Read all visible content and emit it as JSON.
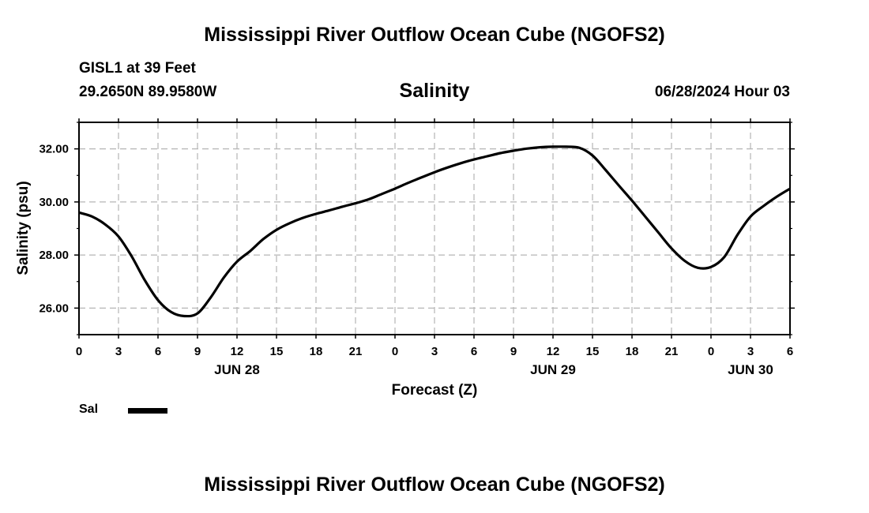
{
  "header": {
    "title": "Mississippi River Outflow Ocean Cube (NGOFS2)",
    "station": "GISL1 at 39 Feet",
    "coordinates": "29.2650N  89.9580W",
    "timestamp": "06/28/2024 Hour 03"
  },
  "footer": {
    "title": "Mississippi River Outflow Ocean Cube (NGOFS2)"
  },
  "legend": {
    "label": "Sal"
  },
  "chart_data": {
    "type": "line",
    "title": "Salinity",
    "xlabel": "Forecast (Z)",
    "ylabel": "Salinity (psu)",
    "x_unit": "hours from 06/28 00Z",
    "xlim": [
      0,
      54
    ],
    "ylim": [
      25,
      33
    ],
    "grid": true,
    "x_ticks": [
      0,
      3,
      6,
      9,
      12,
      15,
      18,
      21,
      24,
      27,
      30,
      33,
      36,
      39,
      42,
      45,
      48,
      51,
      54
    ],
    "x_tick_labels": [
      "0",
      "3",
      "6",
      "9",
      "12",
      "15",
      "18",
      "21",
      "0",
      "3",
      "6",
      "9",
      "12",
      "15",
      "18",
      "21",
      "0",
      "3",
      "6"
    ],
    "day_labels": [
      {
        "x": 12,
        "label": "JUN 28"
      },
      {
        "x": 36,
        "label": "JUN 29"
      },
      {
        "x": 51,
        "label": "JUN 30"
      }
    ],
    "y_ticks": [
      26,
      28,
      30,
      32
    ],
    "y_tick_labels": [
      "26.00",
      "28.00",
      "30.00",
      "32.00"
    ],
    "y_minor_ticks": [
      25,
      27,
      29,
      31,
      33
    ],
    "legend_position": "bottom-left",
    "series": [
      {
        "name": "Sal",
        "color": "#000000",
        "x": [
          0,
          1,
          2,
          3,
          4,
          5,
          6,
          7,
          8,
          9,
          10,
          11,
          12,
          13,
          14,
          15,
          16,
          17,
          18,
          19,
          20,
          21,
          22,
          23,
          24,
          25,
          26,
          27,
          28,
          29,
          30,
          31,
          32,
          33,
          34,
          35,
          36,
          37,
          38,
          39,
          40,
          41,
          42,
          43,
          44,
          45,
          46,
          47,
          48,
          49,
          50,
          51,
          52,
          53,
          54
        ],
        "y": [
          29.6,
          29.45,
          29.15,
          28.7,
          27.95,
          27.05,
          26.3,
          25.85,
          25.7,
          25.8,
          26.4,
          27.15,
          27.75,
          28.15,
          28.6,
          28.95,
          29.2,
          29.4,
          29.55,
          29.68,
          29.82,
          29.95,
          30.1,
          30.3,
          30.5,
          30.72,
          30.92,
          31.12,
          31.3,
          31.46,
          31.6,
          31.72,
          31.84,
          31.93,
          32.01,
          32.06,
          32.08,
          32.08,
          32.04,
          31.75,
          31.2,
          30.62,
          30.05,
          29.45,
          28.85,
          28.25,
          27.78,
          27.52,
          27.55,
          27.92,
          28.75,
          29.45,
          29.85,
          30.2,
          30.5
        ]
      }
    ]
  }
}
